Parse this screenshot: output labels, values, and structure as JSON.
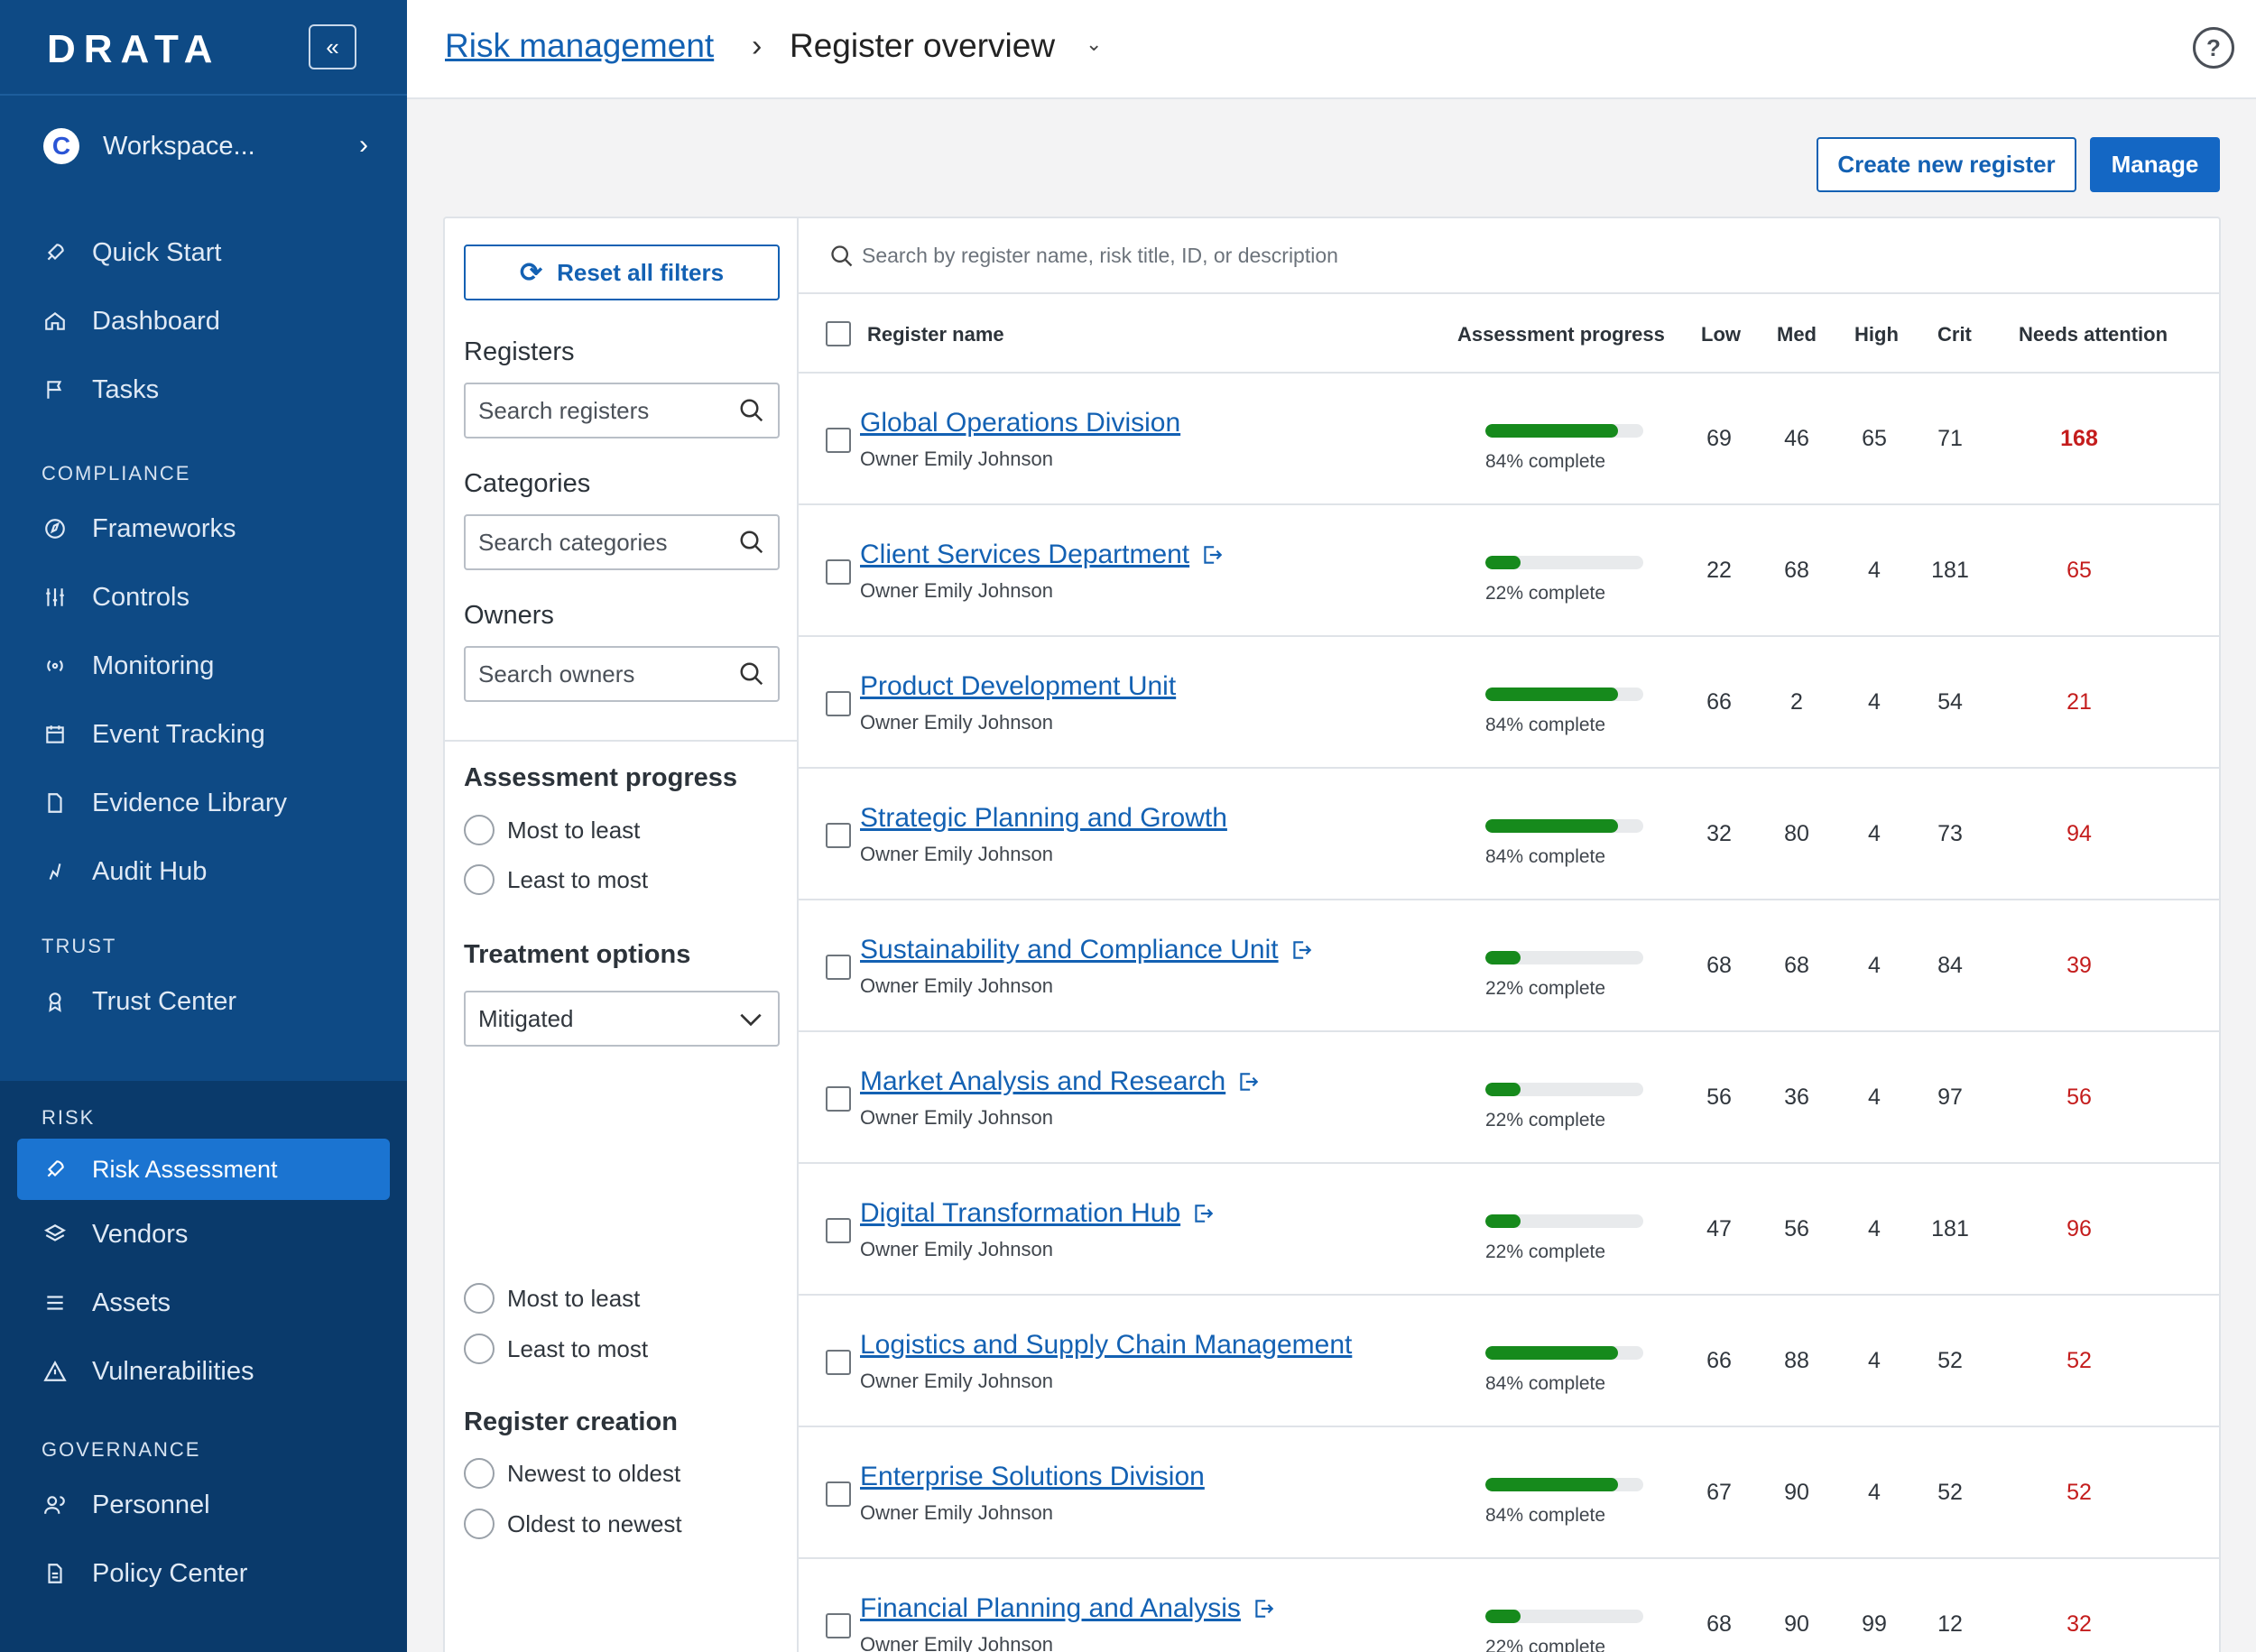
{
  "app": {
    "logo": "DRATA"
  },
  "sidebar": {
    "workspace": "Workspace...",
    "items_top": [
      {
        "label": "Quick Start",
        "icon": "rocket-icon"
      },
      {
        "label": "Dashboard",
        "icon": "home-icon"
      },
      {
        "label": "Tasks",
        "icon": "flag-icon"
      }
    ],
    "section_compliance": "COMPLIANCE",
    "items_compliance": [
      {
        "label": "Frameworks",
        "icon": "compass-icon"
      },
      {
        "label": "Controls",
        "icon": "sliders-icon"
      },
      {
        "label": "Monitoring",
        "icon": "broadcast-icon"
      },
      {
        "label": "Event Tracking",
        "icon": "calendar-icon"
      },
      {
        "label": "Evidence Library",
        "icon": "file-icon"
      },
      {
        "label": "Audit Hub",
        "icon": "audit-icon"
      }
    ],
    "section_trust": "TRUST",
    "items_trust": [
      {
        "label": "Trust Center",
        "icon": "badge-icon"
      }
    ],
    "section_risk": "RISK",
    "items_risk": [
      {
        "label": "Risk Assessment",
        "icon": "rocket-icon"
      },
      {
        "label": "Vendors",
        "icon": "layers-icon"
      },
      {
        "label": "Assets",
        "icon": "list-icon"
      },
      {
        "label": "Vulnerabilities",
        "icon": "warning-icon"
      }
    ],
    "section_governance": "GOVERNANCE",
    "items_governance": [
      {
        "label": "Personnel",
        "icon": "people-icon"
      },
      {
        "label": "Policy Center",
        "icon": "document-icon"
      }
    ]
  },
  "header": {
    "breadcrumb_link": "Risk management",
    "breadcrumb_current": "Register overview"
  },
  "actions": {
    "create": "Create new register",
    "manage": "Manage"
  },
  "filters": {
    "reset": "Reset all filters",
    "registers_title": "Registers",
    "registers_placeholder": "Search registers",
    "categories_title": "Categories",
    "categories_placeholder": "Search categories",
    "owners_title": "Owners",
    "owners_placeholder": "Search owners",
    "assessment_title": "Assessment progress",
    "assessment_options": [
      "Most to least",
      "Least to most"
    ],
    "treatment_title": "Treatment options",
    "treatment_selected": "Mitigated",
    "treatment_options": [
      "Most to least",
      "Least to most"
    ],
    "creation_title": "Register creation",
    "creation_options": [
      "Newest to oldest",
      "Oldest to newest"
    ]
  },
  "table": {
    "search_placeholder": "Search by register name, risk title, ID, or description",
    "columns": {
      "name": "Register name",
      "progress": "Assessment progress",
      "low": "Low",
      "med": "Med",
      "high": "High",
      "crit": "Crit",
      "attention": "Needs attention"
    },
    "rows": [
      {
        "name": "Global Operations Division",
        "owner": "Owner Emily Johnson",
        "progress": 84,
        "progress_label": "84% complete",
        "external": false,
        "low": "69",
        "med": "46",
        "high": "65",
        "crit": "71",
        "attention": "168"
      },
      {
        "name": "Client Services Department",
        "owner": "Owner Emily Johnson",
        "progress": 22,
        "progress_label": "22% complete",
        "external": true,
        "low": "22",
        "med": "68",
        "high": "4",
        "crit": "181",
        "attention": "65"
      },
      {
        "name": "Product Development Unit",
        "owner": "Owner Emily Johnson",
        "progress": 84,
        "progress_label": "84% complete",
        "external": false,
        "low": "66",
        "med": "2",
        "high": "4",
        "crit": "54",
        "attention": "21"
      },
      {
        "name": "Strategic Planning and Growth",
        "owner": "Owner Emily Johnson",
        "progress": 84,
        "progress_label": "84% complete",
        "external": false,
        "low": "32",
        "med": "80",
        "high": "4",
        "crit": "73",
        "attention": "94"
      },
      {
        "name": "Sustainability and Compliance Unit",
        "owner": "Owner Emily Johnson",
        "progress": 22,
        "progress_label": "22% complete",
        "external": true,
        "low": "68",
        "med": "68",
        "high": "4",
        "crit": "84",
        "attention": "39"
      },
      {
        "name": "Market Analysis and Research",
        "owner": "Owner Emily Johnson",
        "progress": 22,
        "progress_label": "22% complete",
        "external": true,
        "low": "56",
        "med": "36",
        "high": "4",
        "crit": "97",
        "attention": "56"
      },
      {
        "name": "Digital Transformation Hub",
        "owner": "Owner Emily Johnson",
        "progress": 22,
        "progress_label": "22% complete",
        "external": true,
        "low": "47",
        "med": "56",
        "high": "4",
        "crit": "181",
        "attention": "96"
      },
      {
        "name": "Logistics and Supply Chain Management",
        "owner": "Owner Emily Johnson",
        "progress": 84,
        "progress_label": "84% complete",
        "external": false,
        "low": "66",
        "med": "88",
        "high": "4",
        "crit": "52",
        "attention": "52"
      },
      {
        "name": "Enterprise Solutions Division",
        "owner": "Owner Emily Johnson",
        "progress": 84,
        "progress_label": "84% complete",
        "external": false,
        "low": "67",
        "med": "90",
        "high": "4",
        "crit": "52",
        "attention": "52"
      },
      {
        "name": "Financial Planning and Analysis",
        "owner": "Owner Emily Johnson",
        "progress": 22,
        "progress_label": "22% complete",
        "external": true,
        "low": "68",
        "med": "90",
        "high": "99",
        "crit": "12",
        "attention": "32"
      }
    ]
  },
  "colors": {
    "sidebar": "#0e4a85",
    "accent": "#1467c4",
    "progress": "#168a1c",
    "attention": "#c41d1d"
  }
}
